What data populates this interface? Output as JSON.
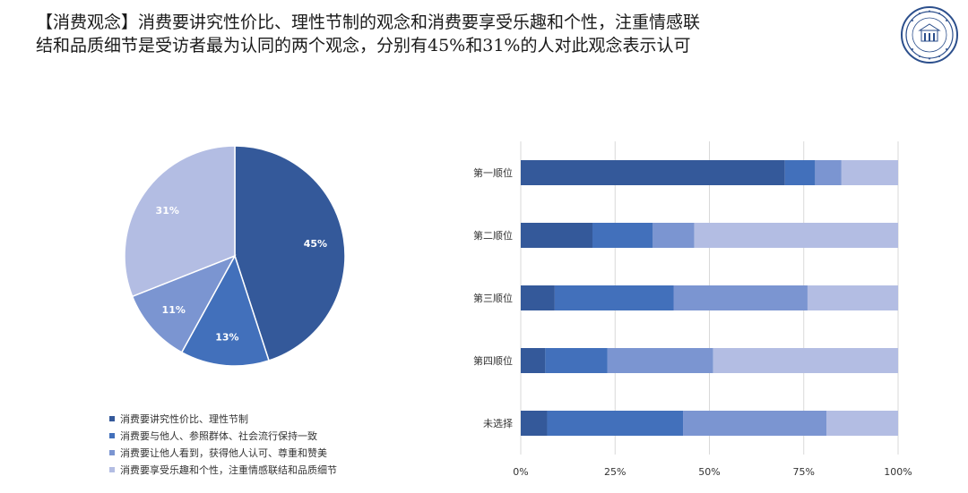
{
  "header": {
    "title_line1": "【消费观念】消费要讲究性价比、理性节制的观念和消费要享受乐趣和个性，注重情感联",
    "title_line2": "结和品质细节是受访者最为认同的两个观念，分别有45%和31%的人对此观念表示认可",
    "logo_icon": "university-seal-icon"
  },
  "colors": {
    "series": [
      "#34599a",
      "#4270bb",
      "#7b95d1",
      "#b3bde3"
    ],
    "grid": "#d9d9d9",
    "text": "#333333"
  },
  "chart_data": [
    {
      "type": "pie",
      "labels": [
        "消费要讲究性价比、理性节制",
        "消费要与他人、参照群体、社会流行保持一致",
        "消费要让他人看到，获得他人认可、尊重和赞美",
        "消费要享受乐趣和个性，注重情感联结和品质细节"
      ],
      "values": [
        45,
        13,
        11,
        31
      ],
      "value_labels": [
        "45%",
        "13%",
        "11%",
        "31%"
      ],
      "legend": "bottom-left"
    },
    {
      "type": "bar",
      "orientation": "horizontal",
      "stacked": true,
      "categories": [
        "第一顺位",
        "第二顺位",
        "第三顺位",
        "第四顺位",
        "未选择"
      ],
      "series": [
        {
          "name": "消费要讲究性价比、理性节制",
          "values": [
            70,
            19,
            9,
            6.5,
            7
          ]
        },
        {
          "name": "消费要与他人、参照群体、社会流行保持一致",
          "values": [
            8,
            16,
            31.5,
            16.5,
            36
          ]
        },
        {
          "name": "消费要让他人看到，获得他人认可、尊重和赞美",
          "values": [
            7,
            11,
            35.5,
            28,
            38
          ]
        },
        {
          "name": "消费要享受乐趣和个性，注重情感联结和品质细节",
          "values": [
            15,
            54,
            24,
            49,
            19
          ]
        }
      ],
      "xlim": [
        0,
        100
      ],
      "xticks": [
        "0%",
        "25%",
        "50%",
        "75%",
        "100%"
      ],
      "grid": true
    }
  ]
}
